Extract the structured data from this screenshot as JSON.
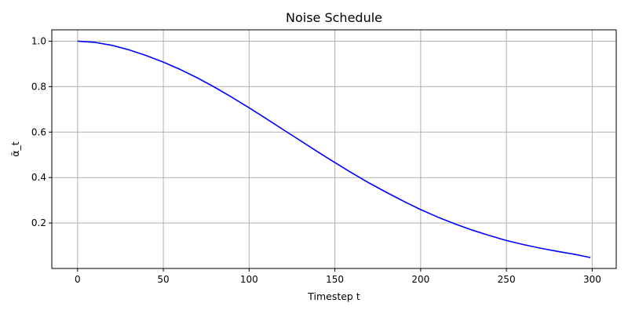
{
  "chart_data": {
    "type": "line",
    "title": "Noise Schedule",
    "xlabel": "Timestep t",
    "ylabel": "ᾱ_t",
    "xlim": [
      -15,
      314
    ],
    "ylim": [
      0.0,
      1.05
    ],
    "xticks": [
      0,
      50,
      100,
      150,
      200,
      250,
      300
    ],
    "yticks": [
      0.2,
      0.4,
      0.6,
      0.8,
      1.0
    ],
    "xtick_labels": [
      "0",
      "50",
      "100",
      "150",
      "200",
      "250",
      "300"
    ],
    "ytick_labels": [
      "0.2",
      "0.4",
      "0.6",
      "0.8",
      "1.0"
    ],
    "grid": true,
    "series": [
      {
        "color": "#0000ff",
        "x": [
          0,
          10,
          20,
          30,
          40,
          50,
          60,
          70,
          80,
          90,
          100,
          110,
          120,
          130,
          140,
          150,
          160,
          170,
          180,
          190,
          200,
          210,
          220,
          230,
          240,
          250,
          260,
          270,
          280,
          290,
          299
        ],
        "y": [
          1.0,
          0.995,
          0.982,
          0.962,
          0.937,
          0.908,
          0.875,
          0.838,
          0.797,
          0.753,
          0.707,
          0.659,
          0.61,
          0.562,
          0.513,
          0.466,
          0.42,
          0.376,
          0.335,
          0.296,
          0.259,
          0.226,
          0.196,
          0.169,
          0.145,
          0.123,
          0.105,
          0.089,
          0.075,
          0.062,
          0.048
        ]
      }
    ]
  }
}
